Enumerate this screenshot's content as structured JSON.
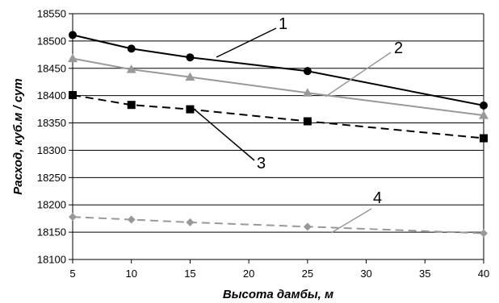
{
  "chart_data": {
    "type": "line",
    "title": "",
    "xlabel": "Высота дамбы, м",
    "ylabel": "Расход, куб.м / сут",
    "x_ticks": [
      5,
      10,
      15,
      20,
      25,
      30,
      35,
      40
    ],
    "y_ticks": [
      18100,
      18150,
      18200,
      18250,
      18300,
      18350,
      18400,
      18450,
      18500,
      18550
    ],
    "xlim": [
      5,
      40
    ],
    "ylim": [
      18100,
      18550
    ],
    "grid": "horizontal",
    "x": [
      5,
      10,
      15,
      25,
      40
    ],
    "series": [
      {
        "name": "1",
        "values": [
          18511,
          18486,
          18470,
          18445,
          18382
        ],
        "color": "#000000",
        "dash": "solid",
        "marker": "circle"
      },
      {
        "name": "2",
        "values": [
          18468,
          18448,
          18434,
          18405,
          18364
        ],
        "color": "#999999",
        "dash": "solid",
        "marker": "triangle"
      },
      {
        "name": "3",
        "values": [
          18401,
          18383,
          18375,
          18353,
          18322
        ],
        "color": "#000000",
        "dash": "dashed",
        "marker": "square"
      },
      {
        "name": "4",
        "values": [
          18178,
          18173,
          18168,
          18160,
          18148
        ],
        "color": "#999999",
        "dash": "dashed",
        "marker": "diamond"
      }
    ]
  }
}
